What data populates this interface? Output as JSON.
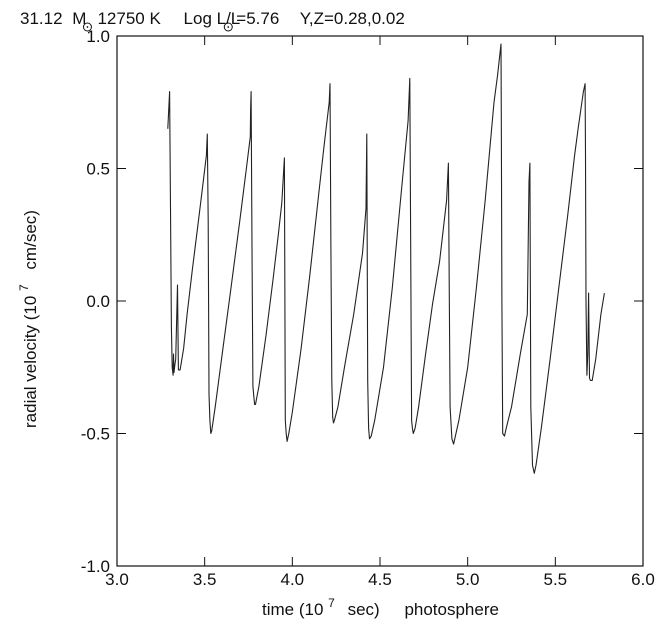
{
  "chart_data": {
    "type": "line",
    "title": {
      "mass": "31.12",
      "mass_unit": "M",
      "teff": "12750 K",
      "lum_prefix": "Log L/L",
      "lum_value": "=5.76",
      "composition": "Y,Z=0.28,0.02"
    },
    "xlabel": {
      "prefix": "time (10",
      "exponent": "7",
      "suffix": "sec)",
      "location": "photosphere"
    },
    "ylabel": {
      "prefix": "radial velocity (10",
      "exponent": "7",
      "suffix": "cm/sec)"
    },
    "xlim": [
      3.0,
      6.0
    ],
    "ylim": [
      -1.0,
      1.0
    ],
    "x_ticks": [
      "3.0",
      "3.5",
      "4.0",
      "4.5",
      "5.0",
      "5.5",
      "6.0"
    ],
    "y_ticks": [
      "-1.0",
      "-0.5",
      "0.0",
      "0.5",
      "1.0"
    ],
    "grid": false,
    "legend": "none",
    "line_color": "#222222",
    "series": [
      {
        "x": [
          3.29,
          3.3,
          3.305,
          3.31,
          3.315,
          3.32,
          3.322,
          3.325,
          3.33,
          3.335,
          3.345,
          3.35,
          3.36,
          3.38,
          3.4,
          3.43,
          3.46,
          3.49,
          3.51,
          3.515,
          3.52,
          3.525,
          3.53,
          3.535,
          3.54,
          3.56,
          3.6,
          3.65,
          3.7,
          3.74,
          3.76,
          3.762,
          3.765,
          3.77,
          3.775,
          3.78,
          3.785,
          3.79,
          3.81,
          3.85,
          3.89,
          3.92,
          3.94,
          3.955,
          3.96,
          3.965,
          3.97,
          3.98,
          4.0,
          4.05,
          4.1,
          4.15,
          4.18,
          4.21,
          4.215,
          4.22,
          4.225,
          4.23,
          4.235,
          4.24,
          4.26,
          4.3,
          4.35,
          4.4,
          4.42,
          4.425,
          4.43,
          4.435,
          4.44,
          4.45,
          4.47,
          4.52,
          4.57,
          4.62,
          4.66,
          4.67,
          4.675,
          4.68,
          4.685,
          4.69,
          4.7,
          4.72,
          4.76,
          4.8,
          4.84,
          4.88,
          4.89,
          4.895,
          4.9,
          4.91,
          4.92,
          4.95,
          5.0,
          5.05,
          5.1,
          5.15,
          5.17,
          5.19,
          5.192,
          5.195,
          5.2,
          5.21,
          5.22,
          5.25,
          5.3,
          5.34,
          5.35,
          5.355,
          5.36,
          5.37,
          5.38,
          5.39,
          5.42,
          5.47,
          5.52,
          5.57,
          5.61,
          5.63,
          5.66,
          5.67,
          5.672,
          5.675,
          5.68,
          5.685,
          5.69,
          5.695,
          5.7,
          5.71,
          5.73,
          5.76,
          5.78
        ],
        "y": [
          0.65,
          0.79,
          0.35,
          -0.1,
          -0.25,
          -0.28,
          -0.2,
          -0.27,
          -0.24,
          -0.22,
          0.06,
          -0.26,
          -0.26,
          -0.18,
          -0.05,
          0.12,
          0.28,
          0.44,
          0.55,
          0.63,
          0.3,
          -0.35,
          -0.45,
          -0.5,
          -0.49,
          -0.4,
          -0.2,
          0.05,
          0.3,
          0.51,
          0.62,
          0.72,
          0.79,
          0.2,
          -0.32,
          -0.36,
          -0.39,
          -0.39,
          -0.32,
          -0.13,
          0.08,
          0.25,
          0.37,
          0.54,
          -0.45,
          -0.5,
          -0.53,
          -0.5,
          -0.42,
          -0.18,
          0.1,
          0.4,
          0.58,
          0.75,
          0.82,
          0.2,
          -0.3,
          -0.44,
          -0.46,
          -0.45,
          -0.4,
          -0.24,
          -0.05,
          0.18,
          0.35,
          0.63,
          -0.3,
          -0.48,
          -0.52,
          -0.51,
          -0.45,
          -0.25,
          0.05,
          0.4,
          0.68,
          0.84,
          0.2,
          -0.45,
          -0.48,
          -0.5,
          -0.48,
          -0.4,
          -0.2,
          -0.01,
          0.15,
          0.38,
          0.52,
          0.02,
          -0.4,
          -0.52,
          -0.54,
          -0.45,
          -0.25,
          0.05,
          0.38,
          0.75,
          0.85,
          0.97,
          0.7,
          0.0,
          -0.5,
          -0.51,
          -0.48,
          -0.4,
          -0.2,
          -0.05,
          0.45,
          0.52,
          -0.4,
          -0.62,
          -0.65,
          -0.62,
          -0.48,
          -0.22,
          0.05,
          0.32,
          0.55,
          0.65,
          0.79,
          0.82,
          0.55,
          0.0,
          -0.28,
          -0.2,
          0.03,
          -0.29,
          -0.3,
          -0.3,
          -0.22,
          -0.05,
          0.03
        ]
      }
    ]
  }
}
